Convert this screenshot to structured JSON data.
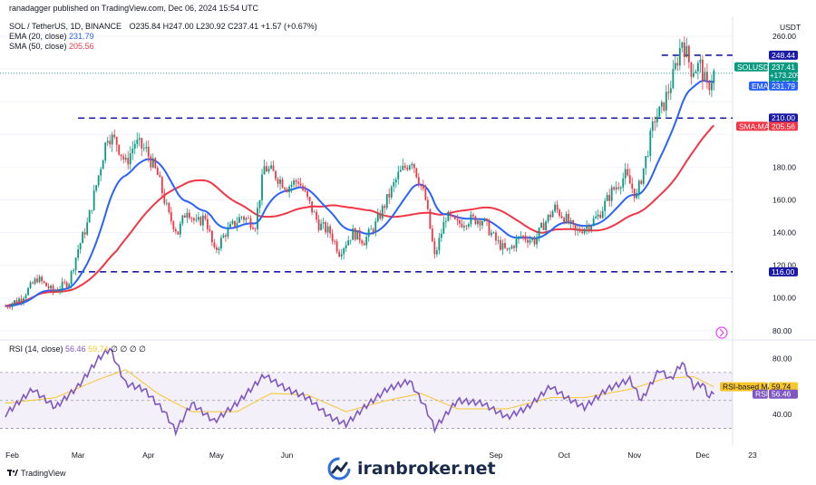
{
  "header": {
    "published": "ranadagger published on TradingView.com, Dec 06, 2024 15:54 UTC",
    "symbol_line": "SOL / TetherUS, 1D, BINANCE",
    "ohlc": "O235.84 H247.00 L230.92 C237.41 +1.57 (+0.67%)",
    "ema_label": "EMA (20, close)",
    "ema_value": "231.79",
    "sma_label": "SMA (50, close)",
    "sma_value": "205.56",
    "rsi_label": "RSI (14, close)",
    "rsi_value": "56.46",
    "rsi_ma_value": "59.74",
    "rsi_extra": "∅ ∅ ∅ ∅"
  },
  "footer": {
    "brand": "TradingView",
    "watermark": "iranbroker.net"
  },
  "colors": {
    "candle_up": "#089981",
    "candle_down": "#f23645",
    "ema": "#2962ff",
    "sma": "#f23645",
    "rsi": "#7e57c2",
    "rsi_ma": "#f7c52e",
    "levels": "#1a1aa6",
    "current_price": "#089981"
  },
  "chart_data": [
    {
      "type": "candlestick",
      "title": "SOL / TetherUS, 1D, BINANCE",
      "currency": "USDT",
      "y_axis": {
        "ticks": [
          80,
          100,
          120,
          140,
          160,
          180,
          200,
          220,
          240,
          260
        ],
        "visible_labels": [
          "260.00",
          "180.00",
          "160.00",
          "140.00",
          "120.00",
          "100.00",
          "80.00"
        ],
        "ylim": [
          76,
          270
        ]
      },
      "x_axis": {
        "labels": [
          "Feb",
          "Mar",
          "Apr",
          "May",
          "Jun",
          "Sep",
          "Oct",
          "Nov",
          "Dec",
          "23"
        ],
        "range": [
          "2024-01-29",
          "2024-12-25"
        ]
      },
      "price_tags": [
        {
          "label": "USDT",
          "value": null
        },
        {
          "label": "248.44",
          "value": 248.44,
          "kind": "level"
        },
        {
          "label": "SOLUSDT",
          "value": 237.41,
          "kind": "symbol"
        },
        {
          "label": "237.41",
          "value": 237.41,
          "kind": "price"
        },
        {
          "label": "+173.20%",
          "value": 237.41,
          "kind": "change"
        },
        {
          "label": "08:05:19",
          "value": 237.41,
          "kind": "countdown"
        },
        {
          "label": "EMA",
          "value": 231.79,
          "kind": "ema-name"
        },
        {
          "label": "231.79",
          "value": 231.79,
          "kind": "ema"
        },
        {
          "label": "210.00",
          "value": 210.0,
          "kind": "level"
        },
        {
          "label": "SMA:MA",
          "value": 205.56,
          "kind": "sma-name"
        },
        {
          "label": "205.56",
          "value": 205.56,
          "kind": "sma"
        },
        {
          "label": "116.00",
          "value": 116.0,
          "kind": "level"
        }
      ],
      "levels": [
        {
          "value": 248.44,
          "from": "2024-11-13",
          "to": "2024-12-25"
        },
        {
          "value": 210.0,
          "from": "2024-03-01",
          "to": "2024-12-25"
        },
        {
          "value": 116.0,
          "from": "2024-03-01",
          "to": "2024-12-25"
        }
      ],
      "close_path": [
        [
          "2024-01-29",
          95
        ],
        [
          "2024-02-05",
          100
        ],
        [
          "2024-02-12",
          112
        ],
        [
          "2024-02-19",
          104
        ],
        [
          "2024-02-26",
          110
        ],
        [
          "2024-03-01",
          130
        ],
        [
          "2024-03-05",
          145
        ],
        [
          "2024-03-10",
          175
        ],
        [
          "2024-03-14",
          200
        ],
        [
          "2024-03-18",
          195
        ],
        [
          "2024-03-22",
          182
        ],
        [
          "2024-03-26",
          195
        ],
        [
          "2024-03-31",
          190
        ],
        [
          "2024-04-05",
          175
        ],
        [
          "2024-04-10",
          150
        ],
        [
          "2024-04-14",
          140
        ],
        [
          "2024-04-18",
          155
        ],
        [
          "2024-04-22",
          145
        ],
        [
          "2024-04-26",
          150
        ],
        [
          "2024-04-30",
          128
        ],
        [
          "2024-05-05",
          140
        ],
        [
          "2024-05-12",
          150
        ],
        [
          "2024-05-18",
          145
        ],
        [
          "2024-05-22",
          180
        ],
        [
          "2024-05-27",
          175
        ],
        [
          "2024-06-01",
          168
        ],
        [
          "2024-06-06",
          172
        ],
        [
          "2024-06-10",
          160
        ],
        [
          "2024-06-15",
          145
        ],
        [
          "2024-06-20",
          140
        ],
        [
          "2024-06-24",
          128
        ],
        [
          "2024-06-30",
          140
        ],
        [
          "2024-07-05",
          135
        ],
        [
          "2024-07-10",
          145
        ],
        [
          "2024-07-15",
          160
        ],
        [
          "2024-07-20",
          175
        ],
        [
          "2024-07-26",
          185
        ],
        [
          "2024-08-01",
          160
        ],
        [
          "2024-08-05",
          125
        ],
        [
          "2024-08-10",
          150
        ],
        [
          "2024-08-15",
          145
        ],
        [
          "2024-08-20",
          148
        ],
        [
          "2024-08-26",
          148
        ],
        [
          "2024-09-01",
          135
        ],
        [
          "2024-09-06",
          128
        ],
        [
          "2024-09-12",
          138
        ],
        [
          "2024-09-18",
          135
        ],
        [
          "2024-09-22",
          145
        ],
        [
          "2024-09-27",
          155
        ],
        [
          "2024-10-02",
          148
        ],
        [
          "2024-10-06",
          140
        ],
        [
          "2024-10-12",
          145
        ],
        [
          "2024-10-16",
          150
        ],
        [
          "2024-10-22",
          165
        ],
        [
          "2024-10-28",
          175
        ],
        [
          "2024-11-02",
          162
        ],
        [
          "2024-11-06",
          185
        ],
        [
          "2024-11-10",
          210
        ],
        [
          "2024-11-13",
          215
        ],
        [
          "2024-11-18",
          235
        ],
        [
          "2024-11-22",
          258
        ],
        [
          "2024-11-26",
          240
        ],
        [
          "2024-11-30",
          242
        ],
        [
          "2024-12-03",
          228
        ],
        [
          "2024-12-06",
          237.41
        ]
      ],
      "last": {
        "open": 235.84,
        "high": 247.0,
        "low": 230.92,
        "close": 237.41,
        "change": 1.57,
        "change_pct": 0.67
      },
      "series": [
        {
          "name": "EMA (20, close)",
          "last": 231.79
        },
        {
          "name": "SMA (50, close)",
          "last": 205.56
        }
      ]
    },
    {
      "type": "line",
      "title": "RSI (14, close)",
      "y_axis": {
        "ticks": [
          40,
          80
        ],
        "band": [
          30,
          70
        ],
        "midline": 50,
        "ylim": [
          20,
          90
        ]
      },
      "series": [
        {
          "name": "RSI (14, close)",
          "last": 56.46
        },
        {
          "name": "RSI-based MA",
          "last": 59.74
        }
      ],
      "price_tags": [
        {
          "label": "RSI-based MA",
          "value": 59.74
        },
        {
          "label": "59.74",
          "value": 59.74
        },
        {
          "label": "RSI",
          "value": 56.46
        },
        {
          "label": "56.46",
          "value": 56.46
        }
      ],
      "rsi_path": [
        [
          "2024-01-29",
          40
        ],
        [
          "2024-02-10",
          58
        ],
        [
          "2024-02-20",
          45
        ],
        [
          "2024-03-01",
          60
        ],
        [
          "2024-03-10",
          80
        ],
        [
          "2024-03-15",
          87
        ],
        [
          "2024-03-22",
          62
        ],
        [
          "2024-03-30",
          58
        ],
        [
          "2024-04-08",
          42
        ],
        [
          "2024-04-13",
          28
        ],
        [
          "2024-04-20",
          48
        ],
        [
          "2024-04-30",
          35
        ],
        [
          "2024-05-10",
          48
        ],
        [
          "2024-05-22",
          68
        ],
        [
          "2024-06-01",
          58
        ],
        [
          "2024-06-10",
          52
        ],
        [
          "2024-06-20",
          38
        ],
        [
          "2024-06-27",
          33
        ],
        [
          "2024-07-05",
          45
        ],
        [
          "2024-07-15",
          58
        ],
        [
          "2024-07-25",
          64
        ],
        [
          "2024-08-01",
          45
        ],
        [
          "2024-08-05",
          30
        ],
        [
          "2024-08-15",
          50
        ],
        [
          "2024-08-26",
          48
        ],
        [
          "2024-09-06",
          38
        ],
        [
          "2024-09-15",
          45
        ],
        [
          "2024-09-25",
          60
        ],
        [
          "2024-10-02",
          52
        ],
        [
          "2024-10-10",
          45
        ],
        [
          "2024-10-20",
          58
        ],
        [
          "2024-10-30",
          65
        ],
        [
          "2024-11-04",
          50
        ],
        [
          "2024-11-12",
          72
        ],
        [
          "2024-11-17",
          65
        ],
        [
          "2024-11-22",
          77
        ],
        [
          "2024-11-27",
          60
        ],
        [
          "2024-12-01",
          62
        ],
        [
          "2024-12-04",
          52
        ],
        [
          "2024-12-06",
          56.46
        ]
      ],
      "rsi_ma_path": [
        [
          "2024-01-29",
          48
        ],
        [
          "2024-02-20",
          52
        ],
        [
          "2024-03-10",
          65
        ],
        [
          "2024-03-22",
          72
        ],
        [
          "2024-04-05",
          55
        ],
        [
          "2024-04-20",
          42
        ],
        [
          "2024-05-10",
          42
        ],
        [
          "2024-05-25",
          55
        ],
        [
          "2024-06-10",
          54
        ],
        [
          "2024-06-27",
          42
        ],
        [
          "2024-07-15",
          50
        ],
        [
          "2024-07-30",
          55
        ],
        [
          "2024-08-15",
          44
        ],
        [
          "2024-09-06",
          44
        ],
        [
          "2024-09-25",
          52
        ],
        [
          "2024-10-10",
          52
        ],
        [
          "2024-10-30",
          58
        ],
        [
          "2024-11-15",
          66
        ],
        [
          "2024-11-27",
          67
        ],
        [
          "2024-12-06",
          59.74
        ]
      ]
    }
  ]
}
